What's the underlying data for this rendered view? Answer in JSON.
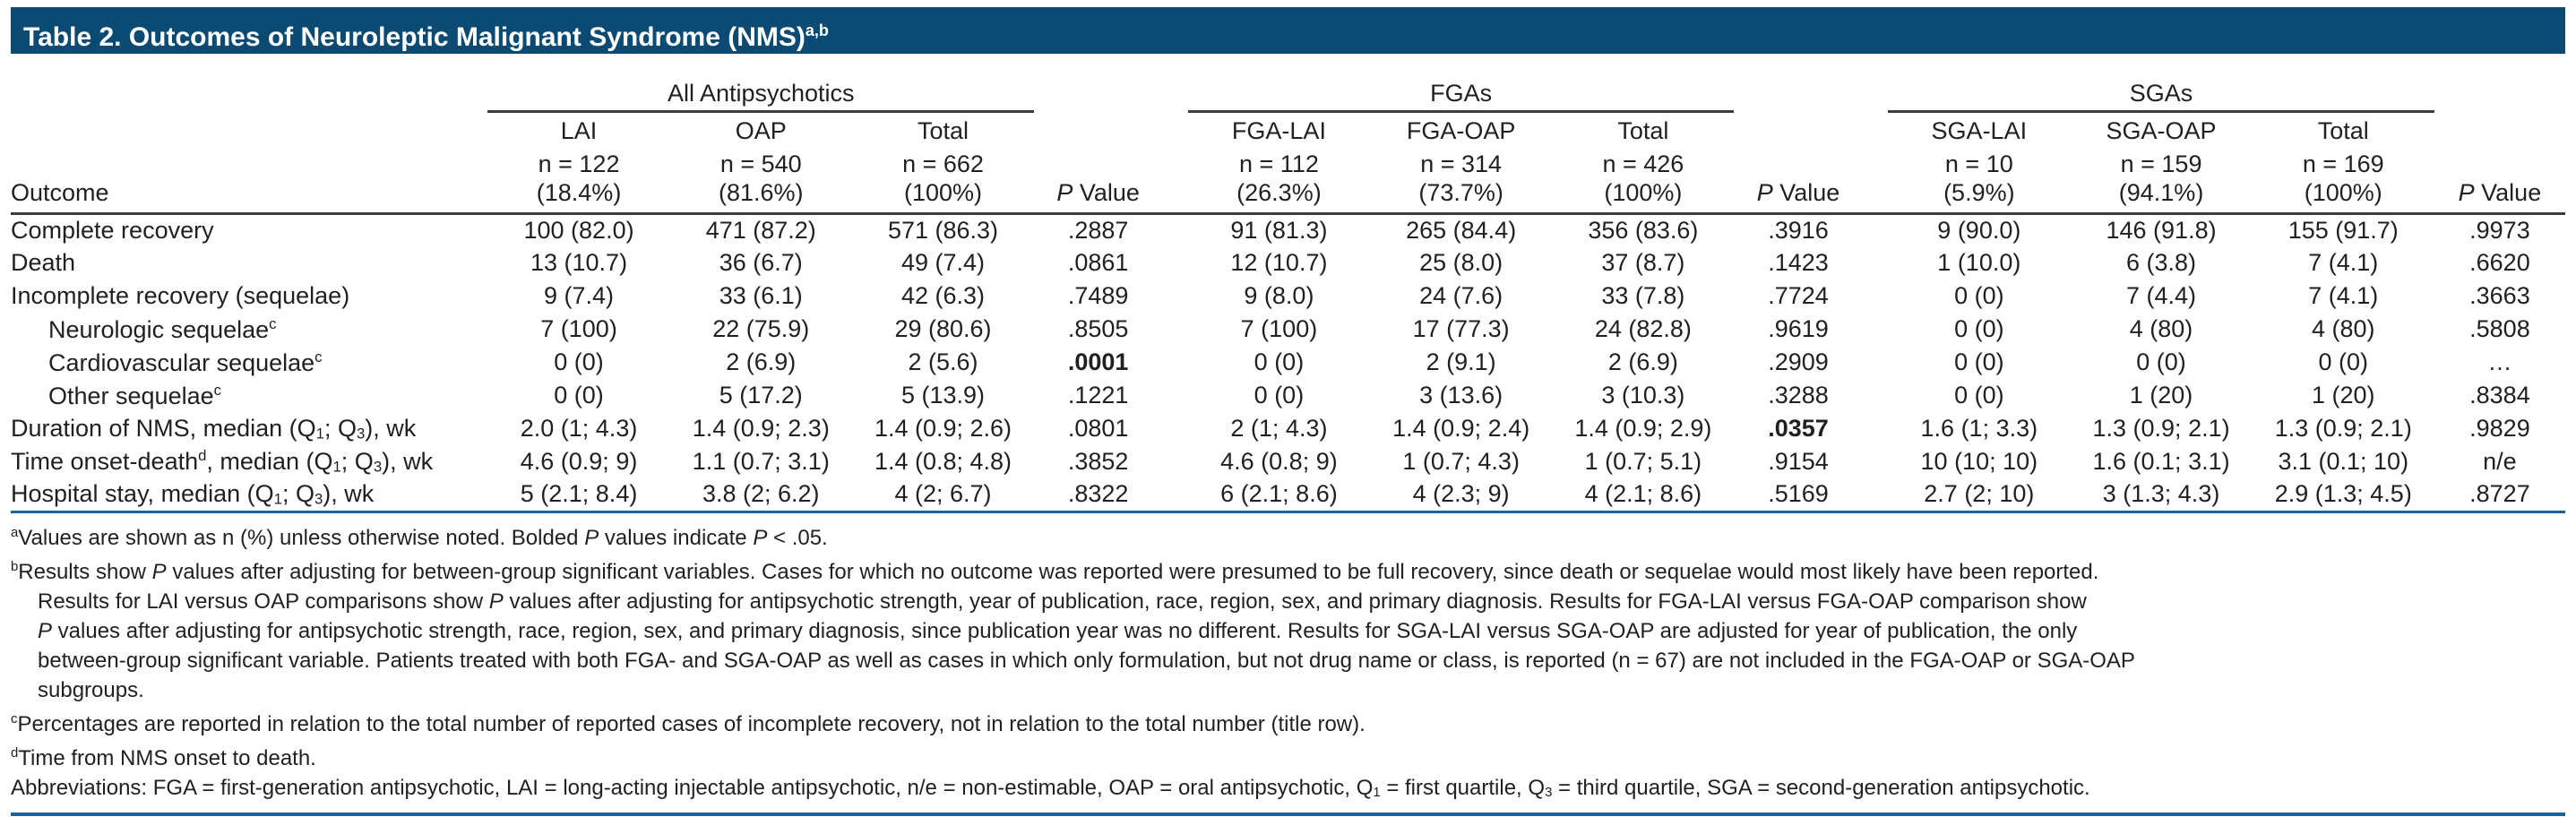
{
  "colors": {
    "title_bar_bg": "#0b4a73",
    "rule_blue": "#1d6296",
    "rule_dark": "#3d3d3d",
    "text": "#231f20"
  },
  "title": {
    "text": "Table 2. Outcomes of Neuroleptic Malignant Syndrome (NMS)",
    "sup": "a,b"
  },
  "table": {
    "outcome_label": "Outcome",
    "p_italic": "P",
    "p_rest": " Value",
    "groups": [
      {
        "label": "All Antipsychotics",
        "cols": [
          {
            "name": "LAI",
            "n": "n = 122",
            "pct": "(18.4%)"
          },
          {
            "name": "OAP",
            "n": "n = 540",
            "pct": "(81.6%)"
          },
          {
            "name": "Total",
            "n": "n = 662",
            "pct": "(100%)"
          }
        ]
      },
      {
        "label": "FGAs",
        "cols": [
          {
            "name": "FGA-LAI",
            "n": "n = 112",
            "pct": "(26.3%)"
          },
          {
            "name": "FGA-OAP",
            "n": "n = 314",
            "pct": "(73.7%)"
          },
          {
            "name": "Total",
            "n": "n = 426",
            "pct": "(100%)"
          }
        ]
      },
      {
        "label": "SGAs",
        "cols": [
          {
            "name": "SGA-LAI",
            "n": "n = 10",
            "pct": "(5.9%)"
          },
          {
            "name": "SGA-OAP",
            "n": "n = 159",
            "pct": "(94.1%)"
          },
          {
            "name": "Total",
            "n": "n = 169",
            "pct": "(100%)"
          }
        ]
      }
    ],
    "rows": [
      {
        "label": [
          {
            "t": "Complete recovery"
          }
        ],
        "indent": false,
        "values": [
          "100 (82.0)",
          "471 (87.2)",
          "571 (86.3)",
          ".2887",
          "91 (81.3)",
          "265 (84.4)",
          "356 (83.6)",
          ".3916",
          "9 (90.0)",
          "146 (91.8)",
          "155 (91.7)",
          ".9973"
        ],
        "bold": []
      },
      {
        "label": [
          {
            "t": "Death"
          }
        ],
        "indent": false,
        "values": [
          "13 (10.7)",
          "36 (6.7)",
          "49 (7.4)",
          ".0861",
          "12 (10.7)",
          "25 (8.0)",
          "37 (8.7)",
          ".1423",
          "1 (10.0)",
          "6 (3.8)",
          "7 (4.1)",
          ".6620"
        ],
        "bold": []
      },
      {
        "label": [
          {
            "t": "Incomplete recovery (sequelae)"
          }
        ],
        "indent": false,
        "values": [
          "9 (7.4)",
          "33 (6.1)",
          "42 (6.3)",
          ".7489",
          "9 (8.0)",
          "24 (7.6)",
          "33 (7.8)",
          ".7724",
          "0 (0)",
          "7 (4.4)",
          "7 (4.1)",
          ".3663"
        ],
        "bold": []
      },
      {
        "label": [
          {
            "t": "Neurologic sequelae"
          },
          {
            "t": "c",
            "sup": true
          }
        ],
        "indent": true,
        "values": [
          "7 (100)",
          "22 (75.9)",
          "29 (80.6)",
          ".8505",
          "7 (100)",
          "17 (77.3)",
          "24 (82.8)",
          ".9619",
          "0 (0)",
          "4 (80)",
          "4 (80)",
          ".5808"
        ],
        "bold": []
      },
      {
        "label": [
          {
            "t": "Cardiovascular sequelae"
          },
          {
            "t": "c",
            "sup": true
          }
        ],
        "indent": true,
        "values": [
          "0 (0)",
          "2 (6.9)",
          "2 (5.6)",
          ".0001",
          "0 (0)",
          "2 (9.1)",
          "2 (6.9)",
          ".2909",
          "0 (0)",
          "0 (0)",
          "0 (0)",
          "…"
        ],
        "bold": [
          3
        ]
      },
      {
        "label": [
          {
            "t": "Other sequelae"
          },
          {
            "t": "c",
            "sup": true
          }
        ],
        "indent": true,
        "values": [
          "0 (0)",
          "5 (17.2)",
          "5 (13.9)",
          ".1221",
          "0 (0)",
          "3 (13.6)",
          "3 (10.3)",
          ".3288",
          "0 (0)",
          "1 (20)",
          "1 (20)",
          ".8384"
        ],
        "bold": []
      },
      {
        "label": [
          {
            "t": "Duration of NMS, median (Q"
          },
          {
            "t": "1",
            "sub": true
          },
          {
            "t": "; Q"
          },
          {
            "t": "3",
            "sub": true
          },
          {
            "t": "), wk"
          }
        ],
        "indent": false,
        "values": [
          "2.0 (1; 4.3)",
          "1.4 (0.9; 2.3)",
          "1.4 (0.9; 2.6)",
          ".0801",
          "2 (1; 4.3)",
          "1.4 (0.9; 2.4)",
          "1.4 (0.9; 2.9)",
          ".0357",
          "1.6 (1; 3.3)",
          "1.3 (0.9; 2.1)",
          "1.3 (0.9; 2.1)",
          ".9829"
        ],
        "bold": [
          7
        ]
      },
      {
        "label": [
          {
            "t": "Time onset-death"
          },
          {
            "t": "d",
            "sup": true
          },
          {
            "t": ", median (Q"
          },
          {
            "t": "1",
            "sub": true
          },
          {
            "t": "; Q"
          },
          {
            "t": "3",
            "sub": true
          },
          {
            "t": "), wk"
          }
        ],
        "indent": false,
        "values": [
          "4.6 (0.9; 9)",
          "1.1 (0.7; 3.1)",
          "1.4 (0.8; 4.8)",
          ".3852",
          "4.6 (0.8; 9)",
          "1 (0.7; 4.3)",
          "1 (0.7; 5.1)",
          ".9154",
          "10 (10; 10)",
          "1.6 (0.1; 3.1)",
          "3.1 (0.1; 10)",
          "n/e"
        ],
        "bold": []
      },
      {
        "label": [
          {
            "t": "Hospital stay, median (Q"
          },
          {
            "t": "1",
            "sub": true
          },
          {
            "t": "; Q"
          },
          {
            "t": "3",
            "sub": true
          },
          {
            "t": "), wk"
          }
        ],
        "indent": false,
        "values": [
          "5 (2.1; 8.4)",
          "3.8 (2; 6.2)",
          "4 (2; 6.7)",
          ".8322",
          "6 (2.1; 8.6)",
          "4 (2.3; 9)",
          "4 (2.1; 8.6)",
          ".5169",
          "2.7 (2; 10)",
          "3 (1.3; 4.3)",
          "2.9 (1.3; 4.5)",
          ".8727"
        ],
        "bold": []
      }
    ]
  },
  "footnotes": [
    {
      "indent": false,
      "segments": [
        {
          "t": "a",
          "sup": true
        },
        {
          "t": "Values are shown as n (%) unless otherwise noted. Bolded "
        },
        {
          "t": "P",
          "i": true
        },
        {
          "t": " values indicate "
        },
        {
          "t": "P",
          "i": true
        },
        {
          "t": " < .05."
        }
      ]
    },
    {
      "indent": false,
      "segments": [
        {
          "t": "b",
          "sup": true
        },
        {
          "t": "Results show "
        },
        {
          "t": "P",
          "i": true
        },
        {
          "t": " values after adjusting for between-group significant variables. Cases for which no outcome was reported were presumed to be full recovery, since death or sequelae would most likely have been reported."
        }
      ]
    },
    {
      "indent": true,
      "segments": [
        {
          "t": "Results for LAI versus OAP comparisons show "
        },
        {
          "t": "P",
          "i": true
        },
        {
          "t": " values after adjusting for antipsychotic strength, year of publication, race, region, sex, and primary diagnosis. Results for FGA-LAI versus FGA-OAP comparison show"
        }
      ]
    },
    {
      "indent": true,
      "segments": [
        {
          "t": "P",
          "i": true
        },
        {
          "t": " values after adjusting for antipsychotic strength, race, region, sex, and primary diagnosis, since publication year was no different. Results for SGA-LAI versus SGA-OAP are adjusted for year of publication, the only"
        }
      ]
    },
    {
      "indent": true,
      "segments": [
        {
          "t": "between-group significant variable. Patients treated with both FGA- and SGA-OAP as well as cases in which only formulation, but not drug name or class, is reported (n = 67) are not included in the FGA-OAP or SGA-OAP"
        }
      ]
    },
    {
      "indent": true,
      "segments": [
        {
          "t": "subgroups."
        }
      ]
    },
    {
      "indent": false,
      "segments": [
        {
          "t": "c",
          "sup": true
        },
        {
          "t": "Percentages are reported in relation to the total number of reported cases of incomplete recovery, not in relation to the total number (title row)."
        }
      ]
    },
    {
      "indent": false,
      "segments": [
        {
          "t": "d",
          "sup": true
        },
        {
          "t": "Time from NMS onset to death."
        }
      ]
    },
    {
      "indent": false,
      "segments": [
        {
          "t": "Abbreviations: FGA = first-generation antipsychotic, LAI = long-acting injectable antipsychotic, n/e = non-estimable, OAP = oral antipsychotic, Q"
        },
        {
          "t": "1",
          "sub": true
        },
        {
          "t": " = first quartile, Q"
        },
        {
          "t": "3",
          "sub": true
        },
        {
          "t": " = third quartile, SGA = second-generation antipsychotic."
        }
      ]
    }
  ]
}
